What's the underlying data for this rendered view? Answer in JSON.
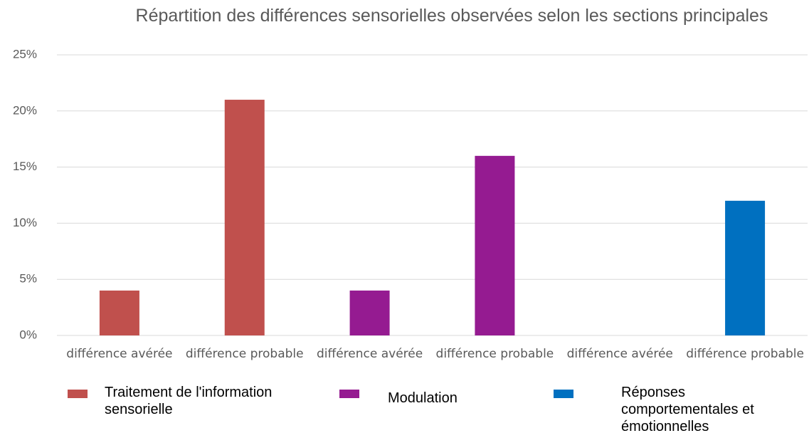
{
  "chart_data": {
    "type": "bar",
    "title": "Répartition des différences sensorielles observées  selon les sections principales",
    "categories": [
      "différence avérée",
      "différence probable",
      "différence avérée",
      "différence probable",
      "différence avérée",
      "différence probable"
    ],
    "series": [
      {
        "name": "Traitement de l'information sensorielle",
        "color": "#c0504d",
        "values": [
          4,
          21,
          null,
          null,
          null,
          null
        ]
      },
      {
        "name": "Modulation",
        "color": "#951b91",
        "values": [
          null,
          null,
          4,
          16,
          null,
          null
        ]
      },
      {
        "name": "Réponses comportementales et émotionnelles",
        "color": "#0070c0",
        "values": [
          null,
          null,
          null,
          null,
          0,
          12
        ]
      }
    ],
    "ylim": [
      0,
      25
    ],
    "yticks": [
      {
        "value": 0,
        "label": "0%"
      },
      {
        "value": 5,
        "label": "5%"
      },
      {
        "value": 10,
        "label": "10%"
      },
      {
        "value": 15,
        "label": "15%"
      },
      {
        "value": 20,
        "label": "20%"
      },
      {
        "value": 25,
        "label": "25%"
      }
    ],
    "grid": true,
    "legend": "bottom"
  }
}
